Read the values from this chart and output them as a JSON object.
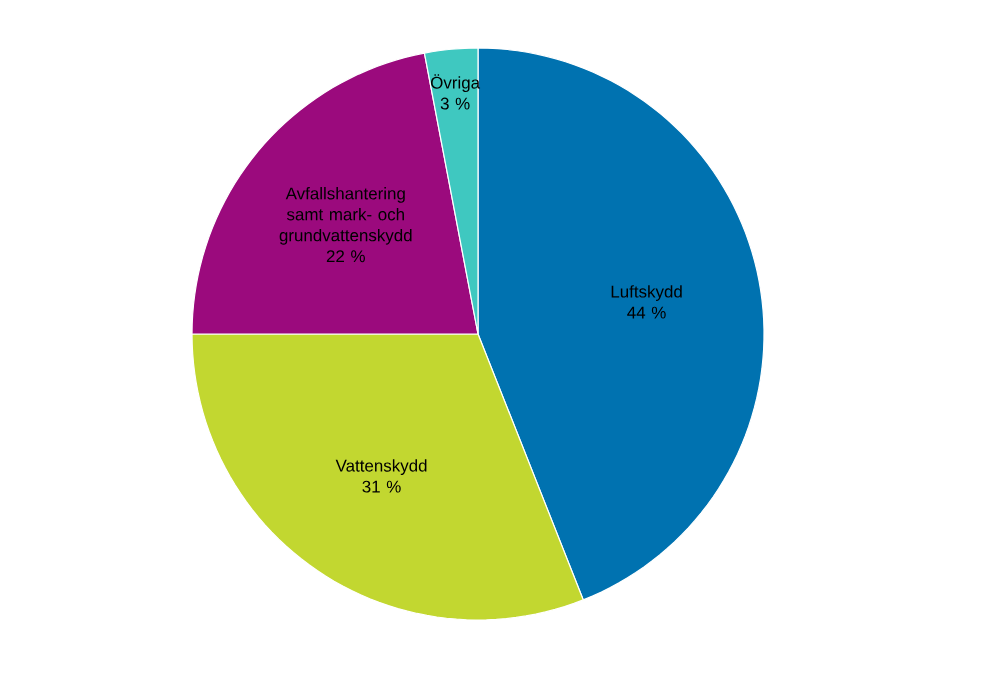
{
  "chart_data": {
    "type": "pie",
    "categories": [
      "Luftskydd",
      "Vattenskydd",
      "Avfallshantering samt mark- och grundvattenskydd",
      "Övriga"
    ],
    "values": [
      44,
      31,
      22,
      3
    ],
    "value_labels": [
      "44 %",
      "31 %",
      "22 %",
      "3 %"
    ],
    "colors": [
      "#0072b0",
      "#c2d730",
      "#9b0a7d",
      "#3fc8c0"
    ]
  }
}
